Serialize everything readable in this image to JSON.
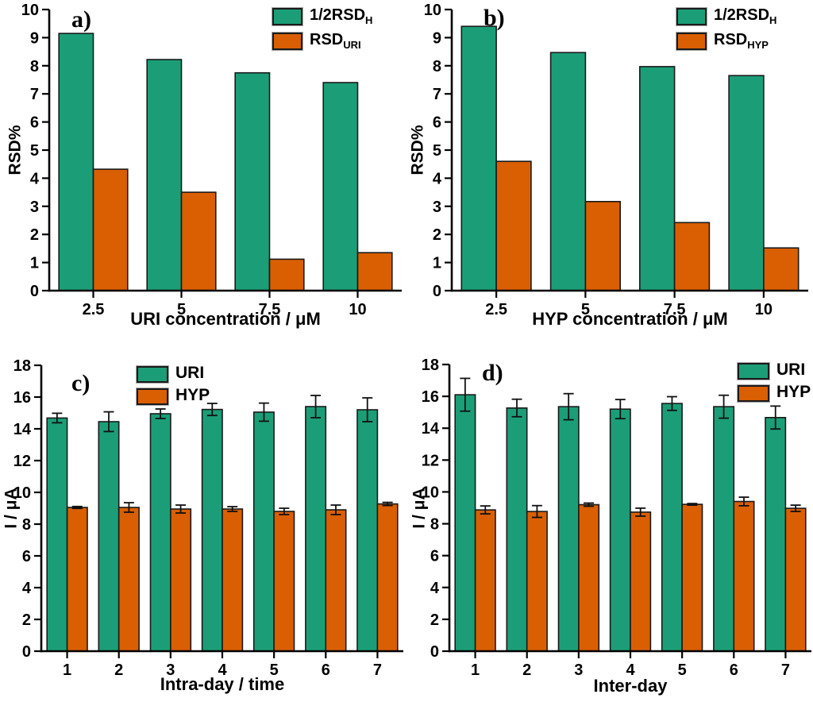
{
  "figure": {
    "background": "#ffffff"
  },
  "colors": {
    "teal": "#1B9E77",
    "orange": "#D95F02",
    "axis": "#000000",
    "bar_stroke": "#1a1a1a"
  },
  "chart_data": [
    {
      "id": "a",
      "type": "bar",
      "panel_label": "a)",
      "ylabel": "RSD%",
      "xlabel": "URI concentration / μM",
      "ylim": [
        0,
        10
      ],
      "ymajor": 1,
      "grid": false,
      "legend_position": "top-right-inside",
      "categories": [
        "2.5",
        "5",
        "7.5",
        "10"
      ],
      "series": [
        {
          "label_main": "1/2RSD",
          "label_sub": "H",
          "color_key": "teal",
          "values": [
            9.15,
            8.22,
            7.75,
            7.4
          ]
        },
        {
          "label_main": "RSD",
          "label_sub": "URI",
          "color_key": "orange",
          "values": [
            4.32,
            3.5,
            1.12,
            1.35
          ]
        }
      ]
    },
    {
      "id": "b",
      "type": "bar",
      "panel_label": "b)",
      "ylabel": "RSD%",
      "xlabel": "HYP concentration / μM",
      "ylim": [
        0,
        10
      ],
      "ymajor": 1,
      "grid": false,
      "legend_position": "top-right-inside",
      "categories": [
        "2.5",
        "5",
        "7.5",
        "10"
      ],
      "series": [
        {
          "label_main": "1/2RSD",
          "label_sub": "H",
          "color_key": "teal",
          "values": [
            9.4,
            8.47,
            7.97,
            7.65
          ]
        },
        {
          "label_main": "RSD",
          "label_sub": "HYP",
          "color_key": "orange",
          "values": [
            4.6,
            3.17,
            2.42,
            1.52
          ]
        }
      ]
    },
    {
      "id": "c",
      "type": "bar",
      "panel_label": "c)",
      "ylabel": "I / μA",
      "xlabel": "Intra-day / time",
      "ylim": [
        0,
        18
      ],
      "ymajor": 2,
      "grid": false,
      "legend_position": "top-center-inside",
      "categories": [
        "1",
        "2",
        "3",
        "4",
        "5",
        "6",
        "7"
      ],
      "series": [
        {
          "label_main": "URI",
          "label_sub": "",
          "color_key": "teal",
          "values": [
            14.68,
            14.45,
            14.95,
            15.22,
            15.05,
            15.4,
            15.2
          ],
          "errors": [
            0.3,
            0.62,
            0.3,
            0.38,
            0.57,
            0.7,
            0.75
          ]
        },
        {
          "label_main": "HYP",
          "label_sub": "",
          "color_key": "orange",
          "values": [
            9.05,
            9.05,
            8.95,
            8.95,
            8.8,
            8.9,
            9.27
          ],
          "errors": [
            0.06,
            0.3,
            0.25,
            0.15,
            0.2,
            0.3,
            0.1
          ]
        }
      ]
    },
    {
      "id": "d",
      "type": "bar",
      "panel_label": "d)",
      "ylabel": "I / μA",
      "xlabel": "Inter-day",
      "ylim": [
        0,
        18
      ],
      "ymajor": 2,
      "grid": false,
      "legend_position": "top-right-inside",
      "categories": [
        "1",
        "2",
        "3",
        "4",
        "5",
        "6",
        "7"
      ],
      "series": [
        {
          "label_main": "URI",
          "label_sub": "",
          "color_key": "teal",
          "values": [
            16.1,
            15.27,
            15.35,
            15.2,
            15.55,
            15.35,
            14.67
          ],
          "errors": [
            1.03,
            0.55,
            0.82,
            0.6,
            0.43,
            0.72,
            0.72
          ]
        },
        {
          "label_main": "HYP",
          "label_sub": "",
          "color_key": "orange",
          "values": [
            8.87,
            8.77,
            9.2,
            8.73,
            9.22,
            9.4,
            8.97
          ],
          "errors": [
            0.25,
            0.37,
            0.1,
            0.25,
            0.05,
            0.27,
            0.2
          ]
        }
      ]
    }
  ]
}
